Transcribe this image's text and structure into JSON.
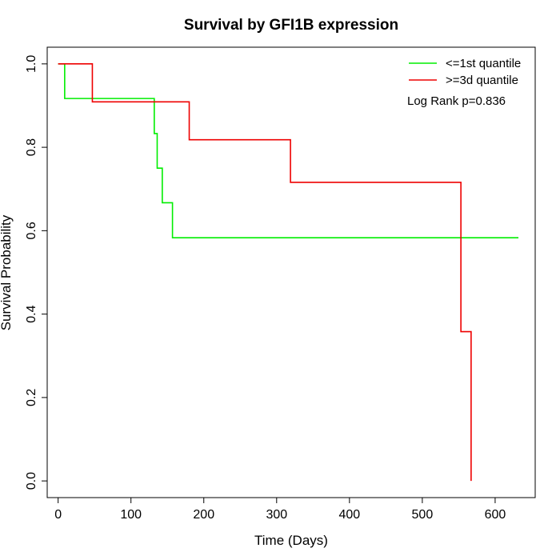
{
  "chart_data": {
    "type": "line",
    "title": "Survival by GFI1B expression",
    "xlabel": "Time (Days)",
    "ylabel": "Survival Probability",
    "xlim": [
      -15,
      655
    ],
    "ylim": [
      -0.04,
      1.04
    ],
    "x_ticks": [
      0,
      100,
      200,
      300,
      400,
      500,
      600
    ],
    "x_tick_labels": [
      "0",
      "100",
      "200",
      "300",
      "400",
      "500",
      "600"
    ],
    "y_ticks": [
      0.0,
      0.2,
      0.4,
      0.6,
      0.8,
      1.0
    ],
    "y_tick_labels": [
      "0.0",
      "0.2",
      "0.4",
      "0.6",
      "0.8",
      "1.0"
    ],
    "grid": false,
    "legend_position": "top-right",
    "annotation": "Log Rank p=0.836",
    "series": [
      {
        "name": "<=1st quantile",
        "color": "#00ee00",
        "step": true,
        "x": [
          0,
          9,
          132,
          136,
          143,
          157,
          632
        ],
        "y": [
          1.0,
          0.917,
          0.833,
          0.75,
          0.667,
          0.583,
          0.583
        ]
      },
      {
        "name": ">=3d quantile",
        "color": "#ee0000",
        "step": true,
        "x": [
          0,
          47,
          180,
          319,
          553,
          567
        ],
        "y": [
          1.0,
          0.909,
          0.818,
          0.716,
          0.358,
          0.0
        ]
      }
    ]
  }
}
